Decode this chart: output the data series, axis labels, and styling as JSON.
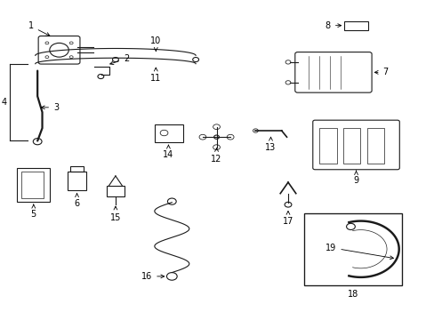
{
  "bg": "#ffffff",
  "lc": "#1a1a1a"
}
